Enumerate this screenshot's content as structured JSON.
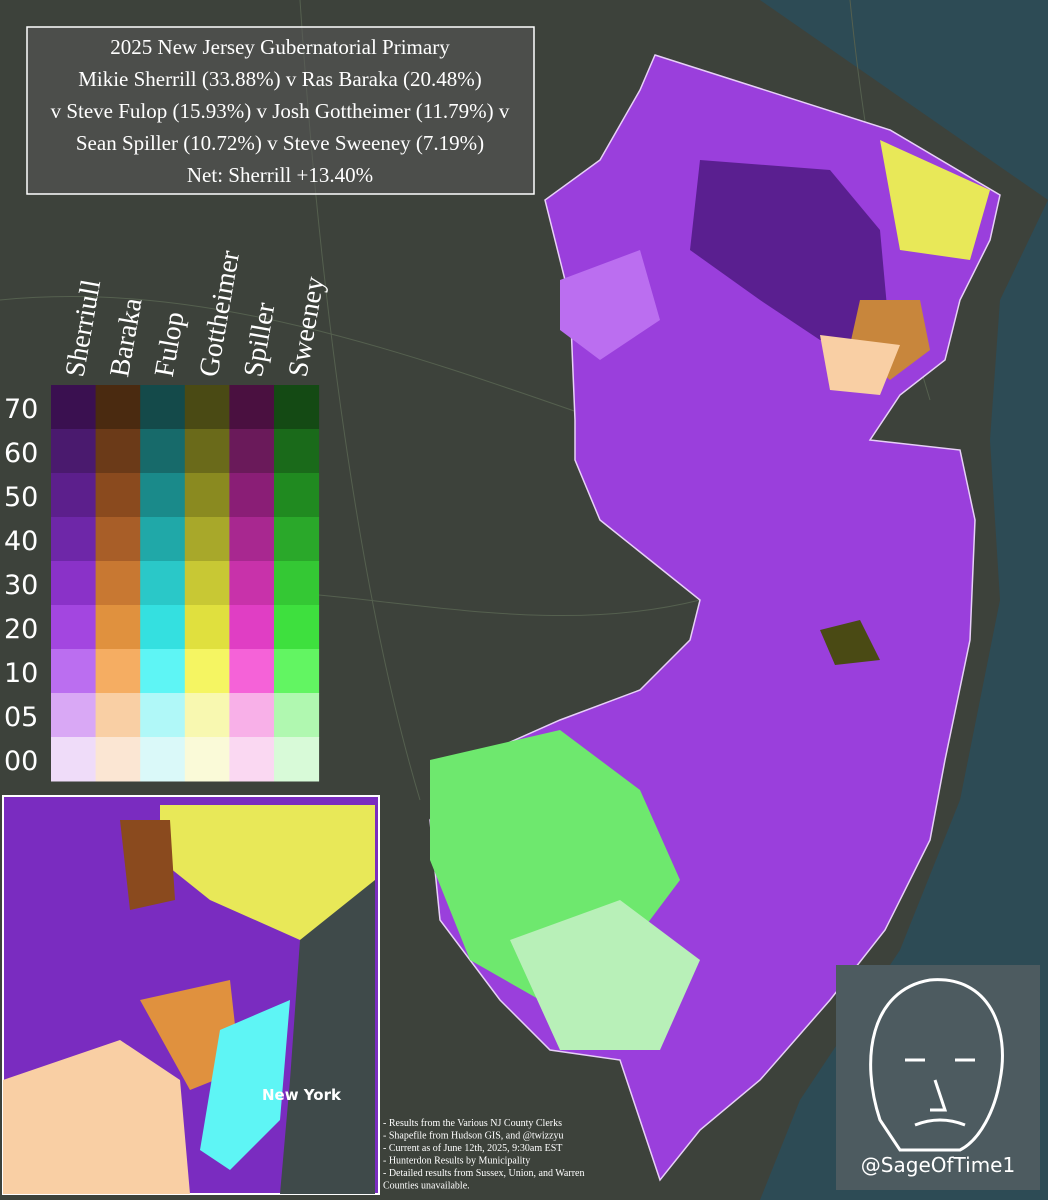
{
  "title_box": {
    "lines": [
      "2025 New Jersey Gubernatorial Primary",
      "Mikie Sherrill (33.88%) v Ras Baraka (20.48%)",
      "v Steve Fulop (15.93%) v Josh Gottheimer (11.79%) v",
      "Sean Spiller (10.72%) v Steve Sweeney (7.19%)",
      "Net: Sherrill +13.40%"
    ]
  },
  "legend": {
    "levels": [
      "70",
      "60",
      "50",
      "40",
      "30",
      "20",
      "10",
      "05",
      "00"
    ],
    "candidates": [
      {
        "name": "Sherriull",
        "colors": [
          "#3a1050",
          "#4a1a6e",
          "#5c1f8c",
          "#6e27a8",
          "#8a32c8",
          "#a346e0",
          "#bb6ef0",
          "#d9a8f5",
          "#efdcf9"
        ]
      },
      {
        "name": "Baraka",
        "colors": [
          "#4a2a10",
          "#6b3a18",
          "#8a4a1e",
          "#a85e28",
          "#c87832",
          "#e0913e",
          "#f5ad62",
          "#f9cfa4",
          "#fbe6d3"
        ]
      },
      {
        "name": "Fulop",
        "colors": [
          "#144a4a",
          "#176a6a",
          "#1a8a8a",
          "#20a8a8",
          "#2ac8c8",
          "#34e0e0",
          "#5ef5f5",
          "#b0f8f8",
          "#daf9f9"
        ]
      },
      {
        "name": "Gottheimer",
        "colors": [
          "#4a4a14",
          "#6a6a1a",
          "#8a8a20",
          "#a8a82a",
          "#c8c834",
          "#e0e03e",
          "#f5f562",
          "#f8f8b0",
          "#fafad8"
        ]
      },
      {
        "name": "Spiller",
        "colors": [
          "#4a1040",
          "#6a1a5a",
          "#8a1e76",
          "#a82890",
          "#c832aa",
          "#e03ec4",
          "#f562d8",
          "#f8b0e8",
          "#fad8f2"
        ]
      },
      {
        "name": "Sweeney",
        "colors": [
          "#144a14",
          "#1a6a1a",
          "#208a20",
          "#2aa82a",
          "#34c834",
          "#3ee03e",
          "#62f562",
          "#b0f8b0",
          "#d8fad8"
        ]
      }
    ]
  },
  "inset_label": "New York",
  "notes": [
    "- Results from the Various NJ County Clerks",
    "- Shapefile from Hudson GIS, and @twizzyu",
    "- Current as of June 12th, 2025, 9:30am EST",
    "- Hunterdon Results by Municipality",
    "- Detailed results from Sussex, Union, and Warren",
    "Counties unavailable."
  ],
  "watermark": "@SageOfTime1"
}
